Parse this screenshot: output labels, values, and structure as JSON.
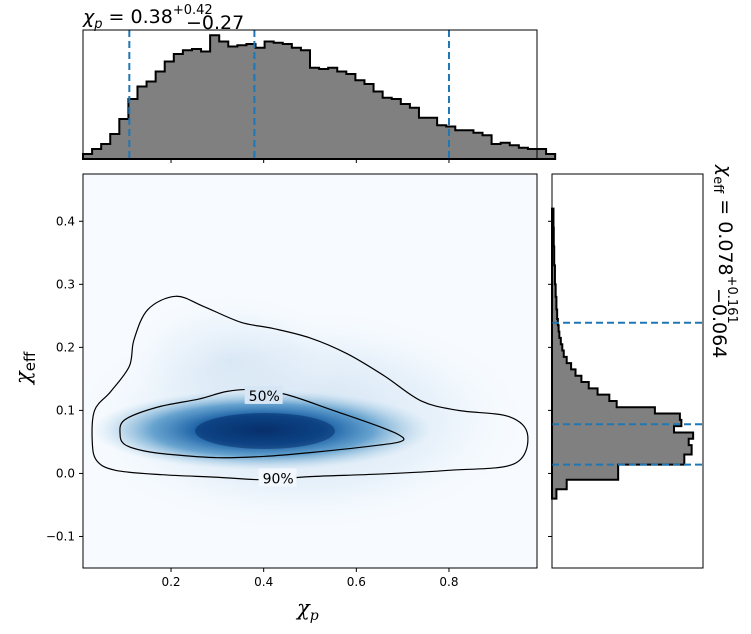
{
  "chart_data": {
    "type": "corner",
    "title_top": {
      "symbol": "χ",
      "sub": "p",
      "value": "0.38",
      "plus": "+0.42",
      "minus": "−0.27"
    },
    "title_right": {
      "symbol": "χ",
      "sub": "eff",
      "value": "0.078",
      "plus": "+0.161",
      "minus": "−0.064"
    },
    "xlabel": {
      "symbol": "χ",
      "sub": "p"
    },
    "ylabel": {
      "symbol": "χ",
      "sub": "eff"
    },
    "xlim": [
      0.01,
      0.99
    ],
    "ylim": [
      -0.15,
      0.475
    ],
    "xticks": [
      0.2,
      0.4,
      0.6,
      0.8
    ],
    "xtick_labels": [
      "0.2",
      "0.4",
      "0.6",
      "0.8"
    ],
    "yticks": [
      -0.1,
      0.0,
      0.1,
      0.2,
      0.3,
      0.4
    ],
    "ytick_labels": [
      "−0.1",
      "0.0",
      "0.1",
      "0.2",
      "0.3",
      "0.4"
    ],
    "chi_p_quantiles": [
      0.11,
      0.38,
      0.8
    ],
    "chi_eff_quantiles": [
      0.014,
      0.078,
      0.239
    ],
    "chi_p_hist": {
      "bin_edges_start": 0.01,
      "bin_width": 0.0196,
      "heights": [
        0.04,
        0.08,
        0.12,
        0.2,
        0.32,
        0.48,
        0.58,
        0.62,
        0.7,
        0.78,
        0.84,
        0.87,
        0.88,
        0.86,
        0.99,
        0.94,
        0.9,
        0.91,
        0.92,
        0.89,
        0.94,
        0.93,
        0.92,
        0.89,
        0.87,
        0.73,
        0.72,
        0.73,
        0.7,
        0.68,
        0.63,
        0.6,
        0.54,
        0.49,
        0.48,
        0.44,
        0.41,
        0.33,
        0.33,
        0.27,
        0.26,
        0.23,
        0.23,
        0.21,
        0.19,
        0.12,
        0.13,
        0.11,
        0.09,
        0.08,
        0.08,
        0.04
      ]
    },
    "chi_eff_hist": {
      "bins": [
        [
          -0.04,
          -0.025,
          0.03
        ],
        [
          -0.025,
          -0.01,
          0.1
        ],
        [
          -0.01,
          0.014,
          0.45
        ],
        [
          0.014,
          0.03,
          0.9
        ],
        [
          0.03,
          0.045,
          0.95
        ],
        [
          0.045,
          0.055,
          0.93
        ],
        [
          0.055,
          0.065,
          0.96
        ],
        [
          0.065,
          0.075,
          0.83
        ],
        [
          0.075,
          0.085,
          0.88
        ],
        [
          0.085,
          0.095,
          0.87
        ],
        [
          0.095,
          0.105,
          0.7
        ],
        [
          0.105,
          0.115,
          0.44
        ],
        [
          0.115,
          0.125,
          0.39
        ],
        [
          0.125,
          0.135,
          0.31
        ],
        [
          0.135,
          0.145,
          0.25
        ],
        [
          0.145,
          0.155,
          0.2
        ],
        [
          0.155,
          0.165,
          0.16
        ],
        [
          0.165,
          0.175,
          0.13
        ],
        [
          0.175,
          0.185,
          0.1
        ],
        [
          0.185,
          0.195,
          0.08
        ],
        [
          0.195,
          0.205,
          0.07
        ],
        [
          0.205,
          0.215,
          0.06
        ],
        [
          0.215,
          0.225,
          0.05
        ],
        [
          0.225,
          0.235,
          0.045
        ],
        [
          0.235,
          0.245,
          0.04
        ],
        [
          0.245,
          0.26,
          0.035
        ],
        [
          0.26,
          0.28,
          0.03
        ],
        [
          0.28,
          0.3,
          0.025
        ],
        [
          0.3,
          0.33,
          0.02
        ],
        [
          0.33,
          0.36,
          0.015
        ],
        [
          0.36,
          0.39,
          0.012
        ],
        [
          0.39,
          0.42,
          0.01
        ]
      ]
    },
    "contours": [
      {
        "label": "50%",
        "points": [
          [
            0.09,
            0.062
          ],
          [
            0.1,
            0.085
          ],
          [
            0.17,
            0.105
          ],
          [
            0.26,
            0.118
          ],
          [
            0.32,
            0.13
          ],
          [
            0.38,
            0.133
          ],
          [
            0.45,
            0.125
          ],
          [
            0.55,
            0.1
          ],
          [
            0.64,
            0.077
          ],
          [
            0.69,
            0.062
          ],
          [
            0.7,
            0.052
          ],
          [
            0.65,
            0.045
          ],
          [
            0.5,
            0.033
          ],
          [
            0.4,
            0.027
          ],
          [
            0.3,
            0.025
          ],
          [
            0.2,
            0.03
          ],
          [
            0.14,
            0.036
          ],
          [
            0.1,
            0.046
          ]
        ],
        "label_at": [
          0.4,
          0.123
        ]
      },
      {
        "label": "90%",
        "points": [
          [
            0.03,
            0.05
          ],
          [
            0.035,
            0.1
          ],
          [
            0.07,
            0.13
          ],
          [
            0.11,
            0.17
          ],
          [
            0.12,
            0.212
          ],
          [
            0.15,
            0.26
          ],
          [
            0.21,
            0.281
          ],
          [
            0.27,
            0.265
          ],
          [
            0.35,
            0.24
          ],
          [
            0.42,
            0.23
          ],
          [
            0.5,
            0.215
          ],
          [
            0.58,
            0.19
          ],
          [
            0.66,
            0.155
          ],
          [
            0.74,
            0.115
          ],
          [
            0.82,
            0.1
          ],
          [
            0.93,
            0.09
          ],
          [
            0.97,
            0.06
          ],
          [
            0.94,
            0.015
          ],
          [
            0.8,
            0.005
          ],
          [
            0.65,
            -0.001
          ],
          [
            0.5,
            -0.005
          ],
          [
            0.4,
            -0.01
          ],
          [
            0.3,
            -0.006
          ],
          [
            0.18,
            -0.002
          ],
          [
            0.08,
            0.005
          ],
          [
            0.04,
            0.02
          ]
        ],
        "label_at": [
          0.43,
          -0.008
        ]
      }
    ],
    "density_color": "#08519c",
    "hist_fill": "#808080",
    "quantile_color": "#1f77b4",
    "grid": false
  }
}
